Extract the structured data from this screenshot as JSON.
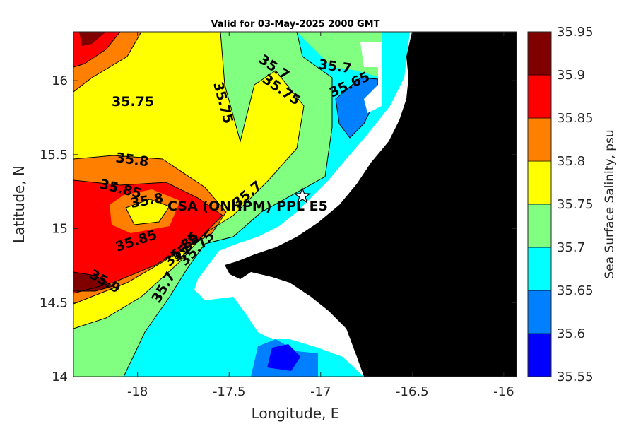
{
  "chart_data": {
    "type": "heatmap",
    "title": "Valid for 03-May-2025 2000 GMT",
    "xlabel": "Longitude, E",
    "ylabel": "Latitude, N",
    "xlim": [
      -18.35,
      -15.93
    ],
    "ylim": [
      14.0,
      16.33
    ],
    "x_ticks": [
      "-18",
      "-17.5",
      "-17",
      "-16.5",
      "-16"
    ],
    "x_tick_values": [
      -18,
      -17.5,
      -17,
      -16.5,
      -16
    ],
    "y_ticks": [
      "14",
      "14.5",
      "15",
      "15.5",
      "16"
    ],
    "y_tick_values": [
      14,
      14.5,
      15,
      15.5,
      16
    ],
    "colorbar": {
      "label": "Sea Surface Salinity, psu",
      "levels": [
        "35.55",
        "35.6",
        "35.65",
        "35.7",
        "35.75",
        "35.8",
        "35.85",
        "35.9",
        "35.95"
      ],
      "colors": [
        "#0000ff",
        "#0080ff",
        "#00ffff",
        "#80ff80",
        "#ffff00",
        "#ff8000",
        "#ff0000",
        "#800000"
      ]
    },
    "contour_labels": [
      "35.75",
      "35.8",
      "35.85",
      "35.8",
      "35.85",
      "35.9",
      "35.75",
      "35.7",
      "35.75",
      "35.7",
      "35.65",
      "35.7",
      "35.85",
      "35.8",
      "35.75",
      "35.7"
    ],
    "station": {
      "label": "CSA (ONHPM) PPL E5",
      "lon": -17.1,
      "lat": 15.22,
      "marker": "star"
    },
    "land_color": "#000000",
    "nodata_color": "#ffffff"
  }
}
